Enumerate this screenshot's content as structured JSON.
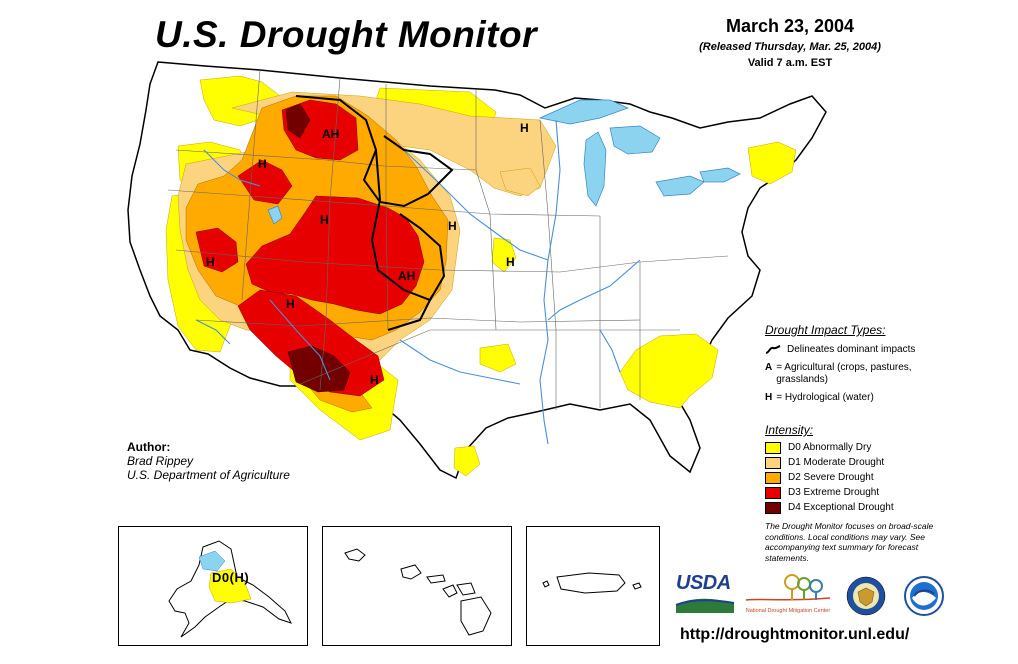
{
  "title": "U.S. Drought Monitor",
  "date": {
    "main": "March 23, 2004",
    "released": "(Released Thursday, Mar. 25, 2004)",
    "valid": "Valid 7 a.m. EST"
  },
  "map": {
    "labels": [
      "AH",
      "H",
      "H",
      "H",
      "H",
      "H",
      "AH",
      "H",
      "H",
      "H"
    ],
    "alaska_label": "D0(H)",
    "colors": {
      "d0": "#ffff00",
      "d1": "#fcd37f",
      "d2": "#ffaa00",
      "d3": "#e60000",
      "d4": "#730000",
      "water": "#8cd3f0",
      "rivers": "#4a90d9"
    }
  },
  "author": {
    "heading": "Author:",
    "name": "Brad Rippey",
    "org": "U.S. Department of Agriculture"
  },
  "impact": {
    "heading": "Drought Impact Types:",
    "dominant": "Delineates dominant impacts",
    "ag_key": "A",
    "ag_text": "= Agricultural (crops, pastures, grasslands)",
    "hyd_key": "H",
    "hyd_text": "= Hydrological (water)"
  },
  "intensity": {
    "heading": "Intensity:",
    "items": [
      {
        "label": "D0 Abnormally Dry",
        "color": "#ffff00"
      },
      {
        "label": "D1 Moderate Drought",
        "color": "#fcd37f"
      },
      {
        "label": "D2 Severe Drought",
        "color": "#ffaa00"
      },
      {
        "label": "D3 Extreme Drought",
        "color": "#e60000"
      },
      {
        "label": "D4 Exceptional Drought",
        "color": "#730000"
      }
    ]
  },
  "note": "The Drought Monitor focuses on broad-scale conditions. Local conditions may vary. See accompanying text summary for forecast statements.",
  "logos": {
    "usda": "USDA",
    "ndmc": "National Drought Mitigation Center"
  },
  "url": "http://droughtmonitor.unl.edu/"
}
